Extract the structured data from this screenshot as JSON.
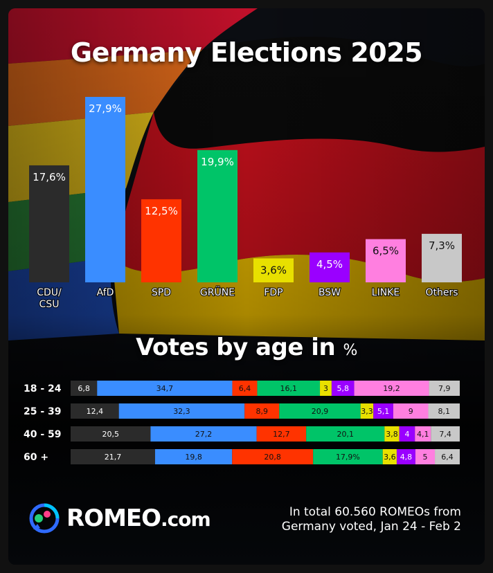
{
  "header": {
    "title": "Germany Elections 2025"
  },
  "chart_data": [
    {
      "type": "bar",
      "title": "Germany Elections 2025",
      "categories": [
        "CDU/ CSU",
        "AfD",
        "SPD",
        "GRÜNE",
        "FDP",
        "BSW",
        "LINKE",
        "Others"
      ],
      "values": [
        17.6,
        27.9,
        12.5,
        19.9,
        3.6,
        4.5,
        6.5,
        7.3
      ],
      "value_labels": [
        "17,6%",
        "27,9%",
        "12,5%",
        "19,9%",
        "3,6%",
        "4,5%",
        "6,5%",
        "7,3%"
      ],
      "colors": [
        "#2b2b2b",
        "#3a8dff",
        "#ff3300",
        "#00c468",
        "#e8e000",
        "#9a00ff",
        "#ff7fe0",
        "#c8c8c8"
      ],
      "ylim": [
        0,
        30
      ],
      "grid": false
    },
    {
      "type": "bar",
      "stacked": true,
      "orientation": "horizontal",
      "title": "Votes by age in %",
      "categories": [
        "18 - 24",
        "25 - 39",
        "40 - 59",
        "60 +"
      ],
      "series": [
        {
          "name": "CDU/ CSU",
          "values": [
            6.8,
            12.4,
            20.5,
            21.7
          ],
          "labels": [
            "6,8",
            "12,4",
            "20,5",
            "21,7"
          ]
        },
        {
          "name": "AfD",
          "values": [
            34.7,
            32.3,
            27.2,
            19.8
          ],
          "labels": [
            "34,7",
            "32,3",
            "27,2",
            "19,8"
          ]
        },
        {
          "name": "SPD",
          "values": [
            6.4,
            8.9,
            12.7,
            20.8
          ],
          "labels": [
            "6,4",
            "8,9",
            "12,7",
            "20,8"
          ]
        },
        {
          "name": "GRÜNE",
          "values": [
            16.1,
            20.9,
            20.1,
            17.9
          ],
          "labels": [
            "16,1",
            "20,9",
            "20,1",
            "17,9%"
          ]
        },
        {
          "name": "FDP",
          "values": [
            3,
            3.3,
            3.8,
            3.6
          ],
          "labels": [
            "3",
            "3,3",
            "3,8",
            "3,6"
          ]
        },
        {
          "name": "BSW",
          "values": [
            5.8,
            5.1,
            4,
            4.8
          ],
          "labels": [
            "5,8",
            "5,1",
            "4",
            "4,8"
          ]
        },
        {
          "name": "LINKE",
          "values": [
            19.2,
            9,
            4.1,
            5
          ],
          "labels": [
            "19,2",
            "9",
            "4,1",
            "5"
          ]
        },
        {
          "name": "Others",
          "values": [
            7.9,
            8.1,
            7.4,
            6.4
          ],
          "labels": [
            "7,9",
            "8,1",
            "7,4",
            "6,4"
          ]
        }
      ],
      "label_colors": [
        "#ffffff",
        "#111111",
        "#111111",
        "#111111",
        "#111111",
        "#ffffff",
        "#111111",
        "#111111"
      ]
    }
  ],
  "section": {
    "title": "Votes by age in",
    "unit": "%"
  },
  "branding": {
    "logo": "ROMEO",
    "logo_suffix": ".com",
    "logo_icon": "romeo-bubble-icon"
  },
  "footer": {
    "note": "In total 60.560 ROMEOs from Germany voted, Jan 24 - Feb 2"
  }
}
